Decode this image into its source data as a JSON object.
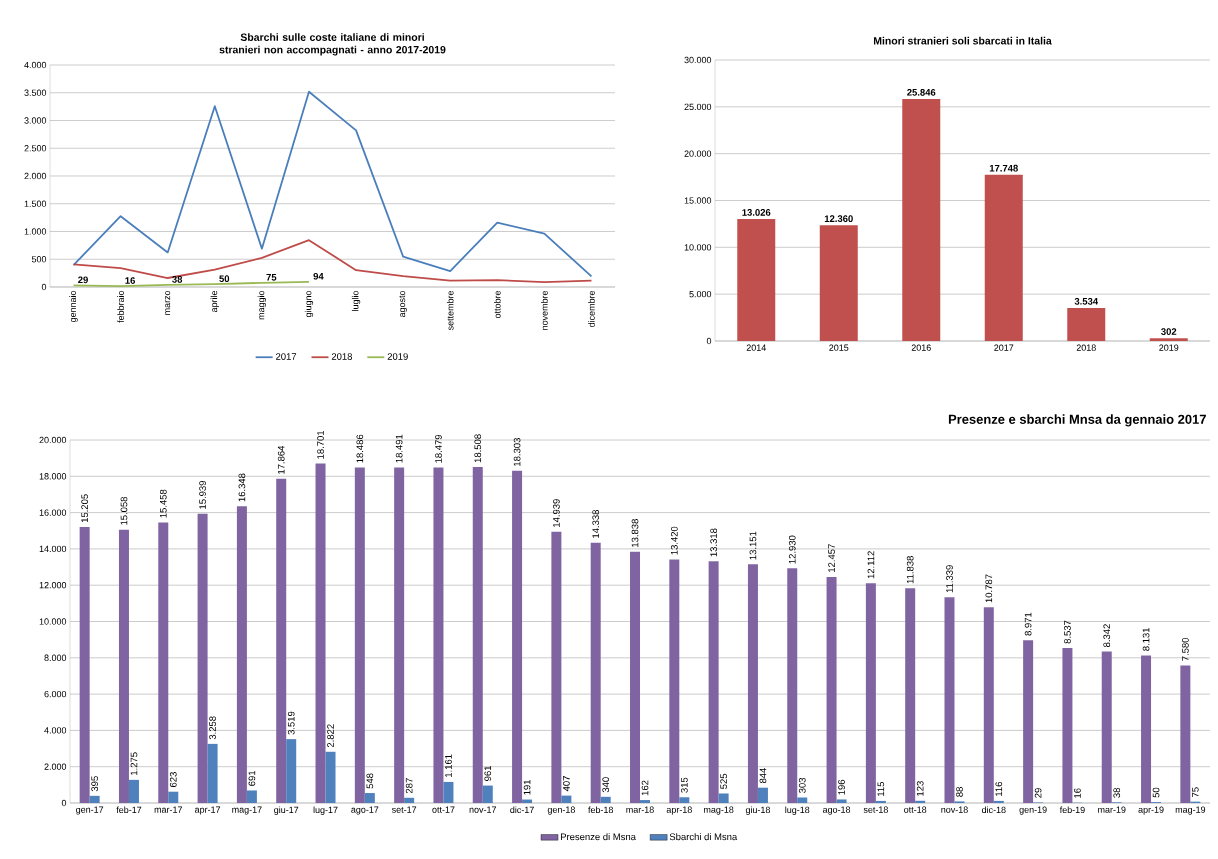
{
  "chart_data": [
    {
      "type": "line",
      "title": "Sbarchi sulle coste italiane di minori stranieri non accompagnati - anno 2017-2019",
      "categories": [
        "gennaio",
        "febbraio",
        "marzo",
        "aprile",
        "maggio",
        "giugno",
        "luglio",
        "agosto",
        "settembre",
        "ottobre",
        "novembre",
        "dicembre"
      ],
      "series": [
        {
          "name": "2017",
          "color": "#4a7ebb",
          "values": [
            395,
            1275,
            623,
            3258,
            691,
            3519,
            2822,
            548,
            287,
            1161,
            961,
            191
          ]
        },
        {
          "name": "2018",
          "color": "#be4b48",
          "values": [
            407,
            340,
            162,
            315,
            525,
            844,
            303,
            196,
            115,
            123,
            88,
            116
          ]
        },
        {
          "name": "2019",
          "color": "#98b954",
          "values": [
            29,
            16,
            38,
            50,
            75,
            94,
            null,
            null,
            null,
            null,
            null,
            null
          ],
          "value_labels": [
            "29",
            "16",
            "38",
            "50",
            "75",
            "94",
            null,
            null,
            null,
            null,
            null,
            null
          ]
        }
      ],
      "ylim": [
        0,
        4000
      ],
      "yticks": [
        0,
        500,
        {
          "value": 1000,
          "label": "1.000"
        },
        {
          "value": 1500,
          "label": "1.500"
        },
        {
          "value": 2000,
          "label": "2.000"
        },
        {
          "value": 2500,
          "label": "2.500"
        },
        {
          "value": 3000,
          "label": "3.000"
        },
        {
          "value": 3500,
          "label": "3.500"
        },
        {
          "value": 4000,
          "label": "4.000"
        }
      ],
      "grid": "y",
      "legend": "bottom"
    },
    {
      "type": "bar",
      "title": "Minori stranieri soli sbarcati in Italia",
      "categories": [
        "2014",
        "2015",
        "2016",
        "2017",
        "2018",
        "2019"
      ],
      "values": [
        13026,
        12360,
        25846,
        17748,
        3534,
        302
      ],
      "color": "#c0504d",
      "value_labels": [
        "13.026",
        "12.360",
        "25.846",
        "17.748",
        "3.534",
        "302"
      ],
      "ylim": [
        0,
        30000
      ],
      "yticks": [
        0,
        {
          "value": 5000,
          "label": "5.000"
        },
        {
          "value": 10000,
          "label": "10.000"
        },
        {
          "value": 15000,
          "label": "15.000"
        },
        {
          "value": 20000,
          "label": "20.000"
        },
        {
          "value": 25000,
          "label": "25.000"
        },
        {
          "value": 30000,
          "label": "30.000"
        }
      ],
      "grid": "y"
    },
    {
      "type": "bar",
      "title": "Presenze  e sbarchi Mnsa da gennaio 2017",
      "categories": [
        "gen-17",
        "feb-17",
        "mar-17",
        "apr-17",
        "mag-17",
        "giu-17",
        "lug-17",
        "ago-17",
        "set-17",
        "ott-17",
        "nov-17",
        "dic-17",
        "gen-18",
        "feb-18",
        "mar-18",
        "apr-18",
        "mag-18",
        "giu-18",
        "lug-18",
        "ago-18",
        "set-18",
        "ott-18",
        "nov-18",
        "dic-18",
        "gen-19",
        "feb-19",
        "mar-19",
        "apr-19",
        "mag-19"
      ],
      "series": [
        {
          "name": "Presenze di Msna",
          "color": "#8064a2",
          "values": [
            15205,
            15058,
            15458,
            15939,
            16348,
            17864,
            18701,
            18486,
            18491,
            18479,
            18508,
            18303,
            14939,
            14338,
            13838,
            13420,
            13318,
            13151,
            12930,
            12457,
            12112,
            11838,
            11339,
            10787,
            8971,
            8537,
            8342,
            8131,
            7580
          ],
          "value_labels": [
            "15.205",
            "15.058",
            "15.458",
            "15.939",
            "16.348",
            "17.864",
            "18.701",
            "18.486",
            "18.491",
            "18.479",
            "18.508",
            "18.303",
            "14.939",
            "14.338",
            "13.838",
            "13.420",
            "13.318",
            "13.151",
            "12.930",
            "12.457",
            "12.112",
            "11.838",
            "11.339",
            "10.787",
            "8.971",
            "8.537",
            "8.342",
            "8.131",
            "7.580"
          ]
        },
        {
          "name": "Sbarchi di Msna",
          "color": "#4f81bd",
          "values": [
            395,
            1275,
            623,
            3258,
            691,
            3519,
            2822,
            548,
            287,
            1161,
            961,
            191,
            407,
            340,
            162,
            315,
            525,
            844,
            303,
            196,
            115,
            123,
            88,
            116,
            29,
            16,
            38,
            50,
            75
          ],
          "value_labels": [
            "395",
            "1.275",
            "623",
            "3.258",
            "691",
            "3.519",
            "2.822",
            "548",
            "287",
            "1.161",
            "961",
            "191",
            "407",
            "340",
            "162",
            "315",
            "525",
            "844",
            "303",
            "196",
            "115",
            "123",
            "88",
            "116",
            "29",
            "16",
            "38",
            "50",
            "75"
          ]
        }
      ],
      "ylim": [
        0,
        20000
      ],
      "yticks": [
        0,
        {
          "value": 2000,
          "label": "2.000"
        },
        {
          "value": 4000,
          "label": "4.000"
        },
        {
          "value": 6000,
          "label": "6.000"
        },
        {
          "value": 8000,
          "label": "8.000"
        },
        {
          "value": 10000,
          "label": "10.000"
        },
        {
          "value": 12000,
          "label": "12.000"
        },
        {
          "value": 14000,
          "label": "14.000"
        },
        {
          "value": 16000,
          "label": "16.000"
        },
        {
          "value": 18000,
          "label": "18.000"
        },
        {
          "value": 20000,
          "label": "20.000"
        }
      ],
      "grid": "y",
      "legend": "bottom"
    }
  ]
}
